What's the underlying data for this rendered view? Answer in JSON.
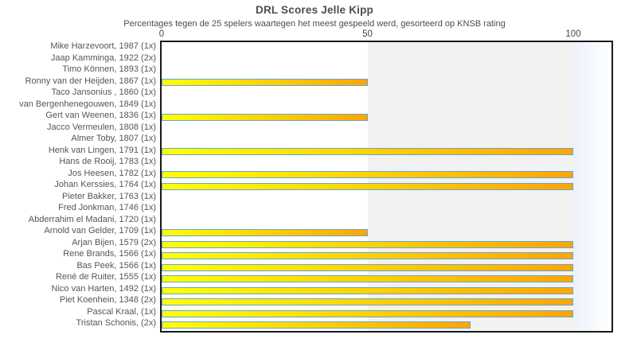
{
  "chart_data": {
    "type": "bar",
    "orientation": "horizontal",
    "title": "DRL Scores Jelle Kipp",
    "subtitle": "Percentages tegen de 25 spelers waartegen het meest gespeeld werd, gesorteerd op KNSB rating",
    "categories": [
      "Mike Harzevoort, 1987 (1x)",
      "Jaap Kamminga, 1922 (2x)",
      "Timo Können, 1893 (1x)",
      "Ronny van der Heijden, 1867 (1x)",
      "Taco Jansonius , 1860 (1x)",
      "van Bergenhenegouwen, 1849 (1x)",
      "Gert van Weenen, 1836 (1x)",
      "Jacco Vermeulen, 1808 (1x)",
      "Almer Toby, 1807 (1x)",
      "Henk van Lingen, 1791 (1x)",
      "Hans de Rooij, 1783 (1x)",
      "Jos Heesen, 1782 (1x)",
      "Johan Kerssies, 1764 (1x)",
      "Pieter Bakker, 1763 (1x)",
      "Fred Jonkman, 1746 (1x)",
      "Abderrahim el Madani, 1720 (1x)",
      "Arnold van Gelder, 1709 (1x)",
      "Arjan Bijen, 1579 (2x)",
      "Rene Brands, 1566 (1x)",
      "Bas Peek, 1566 (1x)",
      "René de Ruiter, 1555 (1x)",
      "Nico van Harten, 1492 (1x)",
      "Piet Koenhein, 1348 (2x)",
      "Pascal Kraal,  (1x)",
      "Tristan Schonis,  (2x)"
    ],
    "values": [
      0,
      0,
      0,
      50,
      0,
      0,
      50,
      0,
      0,
      100,
      0,
      100,
      100,
      0,
      0,
      0,
      50,
      100,
      100,
      100,
      100,
      100,
      100,
      100,
      75
    ],
    "xlabel": "",
    "ylabel": "",
    "x_ticks": [
      0,
      50,
      100
    ],
    "xlim": [
      0,
      109.5
    ],
    "grid": "off",
    "legend_position": "none",
    "colors": {
      "bar_gradient_start": "#ffff00",
      "bar_gradient_end": "#ffa500",
      "bar_border": "#64a5d8",
      "band_50_100": "#f2f2f2",
      "band_over_100": "#ecf3fa",
      "plot_border": "#1a1a1a",
      "title_text": "#4d4d4d",
      "label_text": "#555555"
    }
  }
}
